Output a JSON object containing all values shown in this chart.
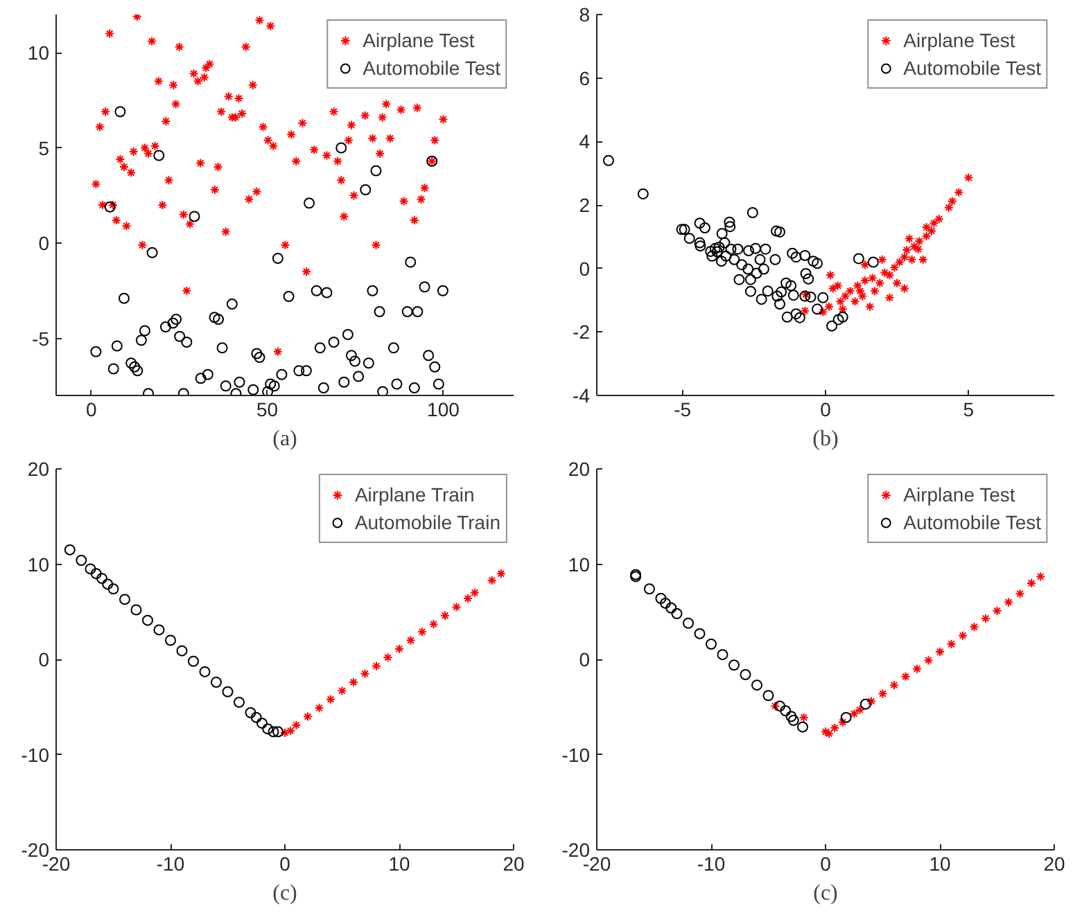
{
  "chart_data": [
    {
      "type": "scatter",
      "xlabel": "(a)",
      "xlim": [
        -10,
        120
      ],
      "ylim": [
        -8,
        12
      ],
      "xticks": [
        0,
        50,
        100
      ],
      "yticks": [
        -5,
        0,
        5,
        10
      ],
      "legend": "top right",
      "series": [
        {
          "name": "Airplane Test",
          "color": "#ff0000",
          "marker": "cross",
          "x": [
            13.0,
            5.2,
            17.2,
            25.0,
            43.9,
            47.8,
            50.9,
            33.6,
            32.6,
            29.1,
            30.3,
            32.1,
            19.1,
            23.3,
            45.9,
            39.0,
            41.9,
            24.0,
            36.9,
            40.0,
            41.0,
            42.8,
            21.2,
            4.0,
            2.4,
            48.8,
            60.0,
            56.8,
            50.2,
            51.7,
            63.3,
            58.2,
            66.9,
            70.0,
            68.9,
            73.9,
            73.1,
            77.8,
            82.7,
            88.0,
            92.6,
            100,
            83.8,
            79.9,
            84.9,
            82.0,
            97.6,
            96.8,
            71.0,
            74.6,
            94.7,
            93.7,
            88.8,
            91.8,
            71.8,
            80.9,
            55.1,
            61.1,
            53.0,
            27.1,
            14.5,
            10.0,
            7.1,
            3.2,
            6.1,
            20.2,
            28.0,
            26.2,
            1.3,
            11.3,
            9.3,
            8.2,
            12.0,
            15.2,
            16.2,
            18.1,
            22.0,
            31.0,
            36.0,
            35.1,
            38.2,
            44.8,
            47.0
          ],
          "values": [
            11.9,
            11.0,
            10.6,
            10.3,
            10.3,
            11.7,
            11.4,
            9.4,
            9.2,
            8.9,
            8.5,
            8.7,
            8.5,
            8.3,
            8.3,
            7.7,
            7.6,
            7.3,
            6.9,
            6.6,
            6.6,
            6.8,
            6.4,
            6.9,
            6.1,
            6.1,
            6.3,
            5.7,
            5.4,
            5.1,
            4.9,
            4.3,
            4.6,
            4.3,
            6.9,
            6.2,
            5.4,
            6.7,
            6.6,
            7.0,
            7.1,
            6.5,
            7.3,
            5.5,
            5.5,
            4.7,
            5.4,
            4.3,
            3.3,
            2.5,
            2.9,
            2.3,
            2.2,
            1.2,
            1.4,
            -0.1,
            -0.1,
            -1.5,
            -5.7,
            -2.5,
            -0.1,
            0.9,
            1.2,
            2.0,
            2.0,
            2.0,
            1.0,
            1.5,
            3.1,
            3.7,
            4.0,
            4.4,
            4.8,
            5.0,
            4.7,
            5.1,
            3.3,
            4.2,
            4.0,
            2.8,
            0.6,
            2.3,
            2.7
          ]
        },
        {
          "name": "Automobile Test",
          "color": "#000000",
          "marker": "circle",
          "x": [
            8.2,
            19.2,
            5.3,
            29.3,
            17.3,
            61.9,
            71.0,
            77.9,
            80.9,
            96.8,
            90.7,
            53.0,
            56.1,
            64.0,
            66.9,
            79.9,
            81.9,
            89.8,
            92.7,
            94.7,
            99.9,
            9.3,
            15.2,
            14.2,
            21.1,
            23.2,
            24.1,
            25.1,
            27.1,
            35.0,
            36.1,
            40.0,
            37.2,
            1.3,
            7.3,
            6.3,
            11.3,
            12.3,
            13.1,
            16.2,
            26.2,
            31.1,
            33.1,
            38.2,
            41.1,
            42.1,
            46.0,
            47.0,
            47.8,
            50.1,
            50.9,
            52.0,
            54.1,
            59.0,
            61.1,
            65.0,
            66.0,
            68.9,
            71.8,
            72.9,
            73.9,
            74.9,
            75.9,
            78.8,
            82.8,
            85.9,
            86.8,
            91.8,
            95.8,
            97.6,
            98.7
          ],
          "values": [
            6.9,
            4.6,
            1.9,
            1.4,
            -0.5,
            2.1,
            5.0,
            2.8,
            3.8,
            4.3,
            -1.0,
            -0.8,
            -2.8,
            -2.5,
            -2.6,
            -2.5,
            -3.6,
            -3.6,
            -3.6,
            -2.3,
            -2.5,
            -2.9,
            -4.6,
            -5.1,
            -4.4,
            -4.2,
            -4.0,
            -4.9,
            -5.2,
            -3.9,
            -4.0,
            -3.2,
            -5.5,
            -5.7,
            -5.4,
            -6.6,
            -6.3,
            -6.5,
            -6.7,
            -7.9,
            -7.9,
            -7.1,
            -6.9,
            -7.5,
            -7.9,
            -7.3,
            -7.7,
            -5.8,
            -6.0,
            -7.8,
            -7.4,
            -7.5,
            -6.9,
            -6.7,
            -6.7,
            -5.5,
            -7.6,
            -5.2,
            -7.3,
            -4.8,
            -5.9,
            -6.2,
            -7.0,
            -6.3,
            -7.8,
            -5.5,
            -7.4,
            -7.6,
            -5.9,
            -6.5,
            -7.4
          ]
        }
      ]
    },
    {
      "type": "scatter",
      "xlabel": "(b)",
      "xlim": [
        -8,
        8
      ],
      "ylim": [
        -4,
        8
      ],
      "xticks": [
        -5,
        0,
        5
      ],
      "yticks": [
        -4,
        -2,
        0,
        2,
        4,
        6,
        8
      ],
      "legend": "top right",
      "series": [
        {
          "name": "Airplane Test",
          "color": "#ff0000",
          "marker": "cross",
          "x": [
            5.0,
            4.66,
            4.43,
            4.31,
            3.97,
            3.79,
            3.53,
            3.53,
            3.28,
            3.1,
            2.93,
            2.84,
            2.76,
            3.02,
            3.41,
            2.59,
            2.41,
            2.76,
            2.24,
            2.07,
            1.98,
            1.9,
            2.24,
            1.64,
            1.38,
            1.38,
            1.29,
            1.12,
            1.03,
            0.86,
            0.69,
            0.6,
            0.52,
            0.26,
            0.17,
            0.12,
            -0.09,
            -0.69,
            -0.72,
            1.55,
            0.43,
            1.21,
            1.72,
            2.5,
            3.24,
            3.71
          ],
          "values": [
            2.86,
            2.4,
            2.12,
            1.92,
            1.56,
            1.43,
            1.3,
            1.02,
            0.86,
            0.69,
            0.94,
            0.58,
            0.36,
            0.28,
            0.28,
            0.2,
            0.03,
            -0.63,
            -0.21,
            -0.13,
            0.28,
            -0.46,
            -0.92,
            -0.3,
            0.12,
            -0.38,
            -0.87,
            -0.54,
            -1.04,
            -0.71,
            -0.87,
            -1.28,
            -1.04,
            -0.63,
            -0.21,
            -1.2,
            -1.37,
            -0.82,
            -1.33,
            -1.2,
            -0.54,
            -0.71,
            -0.71,
            -0.46,
            0.61,
            1.18
          ]
        },
        {
          "name": "Automobile Test",
          "color": "#000000",
          "marker": "circle",
          "x": [
            -7.59,
            -6.38,
            -5.03,
            -4.93,
            -4.76,
            -4.4,
            -4.22,
            -4.4,
            -4.38,
            -4.02,
            -3.86,
            -3.72,
            -3.53,
            -3.97,
            -3.64,
            -3.31,
            -3.07,
            -3.48,
            -3.19,
            -3.36,
            -3.34,
            -2.55,
            -1.72,
            -1.6,
            -3.02,
            -2.62,
            -2.71,
            -2.41,
            -2.16,
            -2.29,
            -2.1,
            -2.45,
            -2.69,
            -2.62,
            -2.24,
            -2.02,
            -1.69,
            -1.6,
            -1.34,
            -1.03,
            -0.9,
            -1.55,
            -1.38,
            -1.21,
            -1.12,
            -0.72,
            -1.16,
            -1.03,
            -0.72,
            -0.43,
            -0.29,
            -0.69,
            -0.6,
            -0.52,
            -0.29,
            -0.09,
            0.22,
            0.45,
            0.6,
            1.16,
            1.67,
            -1.76,
            -3.62,
            -3.79,
            -2.93
          ],
          "values": [
            3.4,
            2.35,
            1.23,
            1.23,
            0.95,
            1.43,
            1.28,
            0.81,
            0.71,
            0.54,
            0.63,
            0.67,
            0.81,
            0.39,
            0.23,
            0.61,
            0.61,
            0.39,
            0.28,
            1.46,
            1.32,
            1.76,
            1.18,
            1.15,
            -0.35,
            -0.35,
            -0.02,
            -0.15,
            -0.02,
            0.28,
            0.61,
            0.63,
            0.56,
            -0.72,
            -0.97,
            -0.71,
            -0.87,
            -1.12,
            -1.53,
            -1.43,
            -1.55,
            -0.74,
            -0.46,
            -0.54,
            -0.84,
            -0.87,
            0.48,
            0.36,
            0.41,
            0.23,
            0.16,
            -0.16,
            -0.33,
            -0.9,
            -1.28,
            -0.92,
            -1.81,
            -1.61,
            -1.53,
            0.31,
            0.2,
            0.28,
            1.1,
            0.53,
            0.12
          ]
        }
      ]
    },
    {
      "type": "scatter",
      "xlabel": "(c)",
      "xlim": [
        -20,
        20
      ],
      "ylim": [
        -20,
        20
      ],
      "xticks": [
        -20,
        -10,
        0,
        10,
        20
      ],
      "yticks": [
        -20,
        -10,
        0,
        10,
        20
      ],
      "legend": "top right",
      "series": [
        {
          "name": "Airplane Train",
          "color": "#ff0000",
          "marker": "cross",
          "x": [
            0,
            0.5,
            1,
            2,
            3,
            4,
            5,
            6,
            7,
            8,
            9,
            10,
            11,
            12,
            13,
            14,
            15,
            16,
            16.6,
            18.1,
            18.9
          ],
          "values": [
            -7.7,
            -7.5,
            -6.9,
            -6.0,
            -5.1,
            -4.2,
            -3.3,
            -2.4,
            -1.5,
            -0.7,
            0.2,
            1.1,
            2.0,
            2.9,
            3.7,
            4.6,
            5.5,
            6.4,
            7.0,
            8.3,
            9.0
          ]
        },
        {
          "name": "Automobile Train",
          "color": "#000000",
          "marker": "circle",
          "x": [
            -18.8,
            -17.8,
            -17.0,
            -16.5,
            -16.0,
            -15.5,
            -15.0,
            -14.0,
            -13.0,
            -12.0,
            -11.0,
            -10.0,
            -9.0,
            -8.0,
            -7.0,
            -6.0,
            -5.0,
            -4.0,
            -3.0,
            -2.5,
            -2.0,
            -1.5,
            -1.0,
            -0.6
          ],
          "values": [
            11.5,
            10.4,
            9.5,
            9.0,
            8.5,
            7.9,
            7.4,
            6.3,
            5.2,
            4.1,
            3.1,
            2.0,
            0.9,
            -0.2,
            -1.3,
            -2.4,
            -3.4,
            -4.5,
            -5.6,
            -6.1,
            -6.7,
            -7.3,
            -7.6,
            -7.6
          ]
        }
      ]
    },
    {
      "type": "scatter",
      "xlabel": "(c)",
      "xlim": [
        -20,
        20
      ],
      "ylim": [
        -20,
        20
      ],
      "xticks": [
        -20,
        -10,
        0,
        10,
        20
      ],
      "yticks": [
        -20,
        -10,
        0,
        10,
        20
      ],
      "legend": "top right",
      "series": [
        {
          "name": "Airplane Test",
          "color": "#ff0000",
          "marker": "cross",
          "x": [
            -4.4,
            -1.9,
            0,
            0.3,
            0.8,
            1.5,
            2.5,
            3,
            4,
            5,
            6,
            7,
            8,
            9,
            10,
            11,
            12,
            13,
            14,
            15,
            16,
            17,
            18,
            18.8
          ],
          "values": [
            -4.9,
            -6.1,
            -7.6,
            -7.8,
            -7.2,
            -6.6,
            -5.7,
            -5.3,
            -4.4,
            -3.6,
            -2.7,
            -1.8,
            -1.0,
            -0.1,
            0.8,
            1.6,
            2.5,
            3.4,
            4.3,
            5.1,
            6.0,
            6.9,
            8.0,
            8.7
          ]
        },
        {
          "name": "Automobile Test",
          "color": "#000000",
          "marker": "circle",
          "x": [
            -16.6,
            -16.6,
            -15.4,
            -14.4,
            -14.0,
            -13.5,
            -13.0,
            -12.0,
            -11.0,
            -10.0,
            -9.0,
            -8.0,
            -7.0,
            -6.0,
            -5.0,
            -4.0,
            -3.5,
            -3.0,
            -2.8,
            -2.0,
            1.8,
            3.5
          ],
          "values": [
            8.7,
            8.9,
            7.4,
            6.4,
            5.9,
            5.4,
            4.8,
            3.8,
            2.7,
            1.6,
            0.5,
            -0.6,
            -1.6,
            -2.7,
            -3.8,
            -4.9,
            -5.4,
            -6.0,
            -6.4,
            -7.1,
            -6.1,
            -4.7
          ]
        }
      ]
    }
  ]
}
